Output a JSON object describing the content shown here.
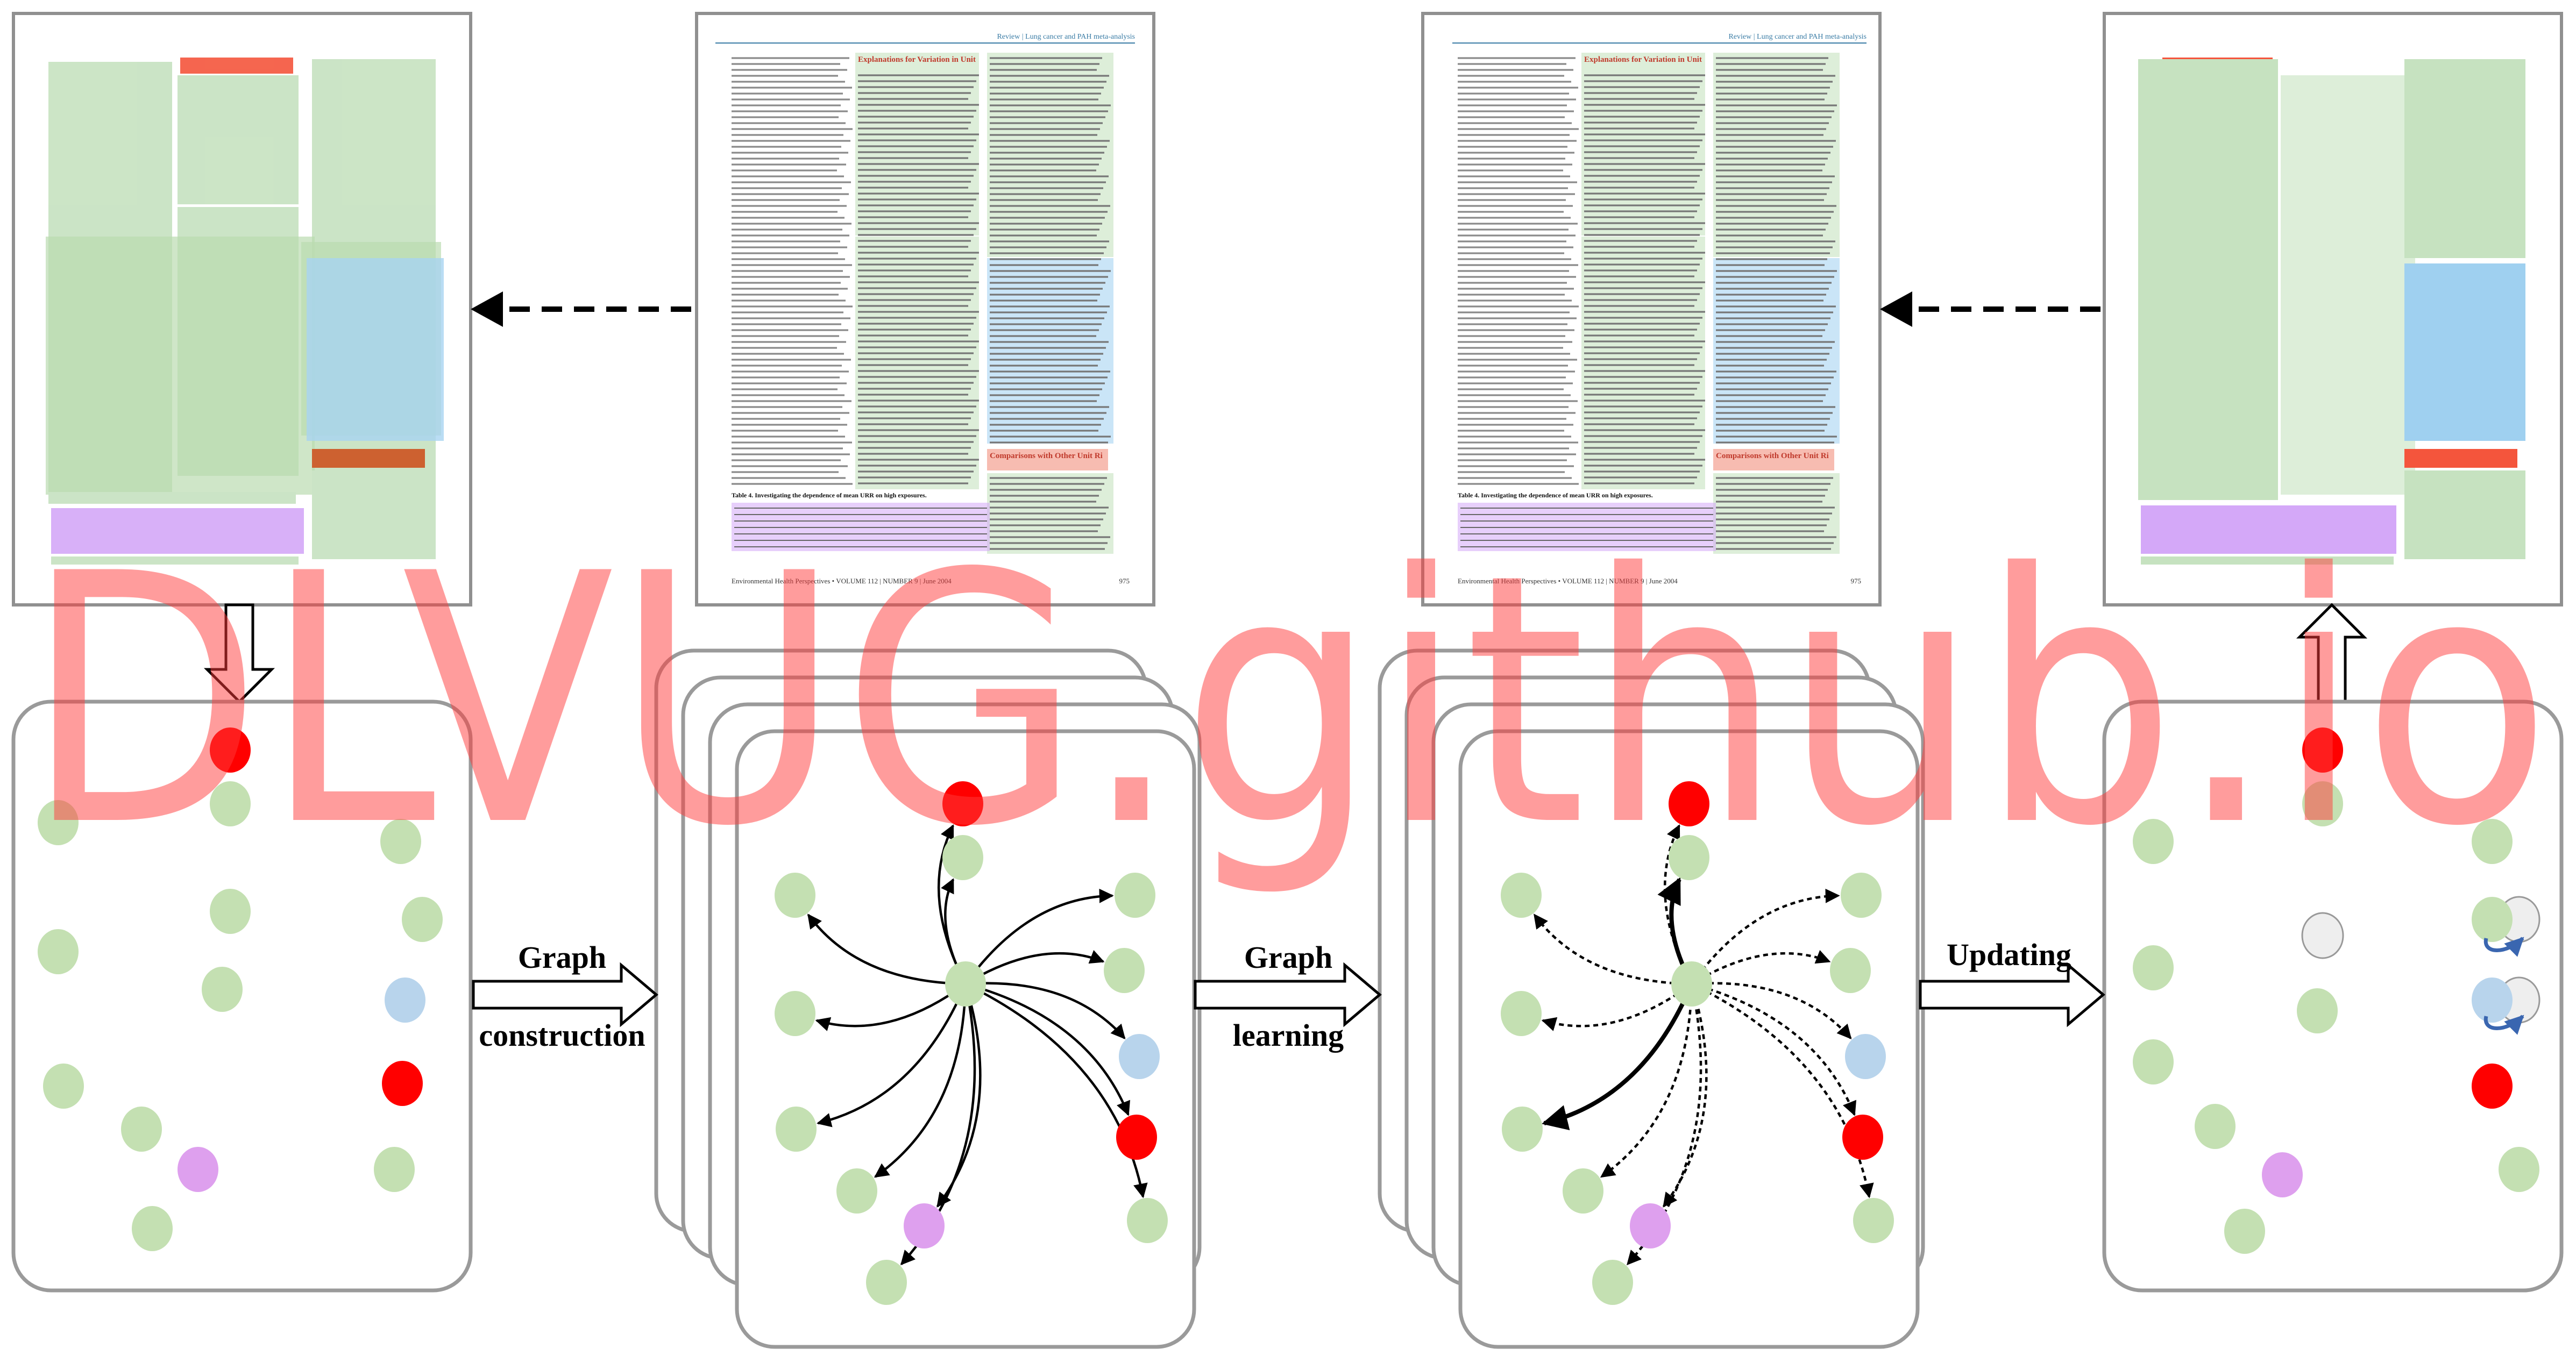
{
  "labels": {
    "graph_construction": [
      "Graph",
      "construction"
    ],
    "graph_learning": [
      "Graph",
      "learning"
    ],
    "updating": "Updating"
  },
  "watermark": "DLVUG.github.io",
  "document_page": {
    "header": "Review | Lung cancer and PAH meta-analysis",
    "footer_left": "Environmental Health Perspectives • VOLUME 112 | NUMBER 9 | June 2004",
    "footer_right": "975",
    "section_1": "Explanations for Variation in Unit Relative Risks",
    "section_2": "Comparisons with Other Unit Risk Assessments",
    "table_caption": "Table 4. Investigating the dependence of mean URR on high exposures."
  },
  "colors": {
    "text_block": "#c6e2c0",
    "title_block": "#f4553c",
    "figure_block": "#9fd0f0",
    "table_block": "#d4a8f8",
    "list_block": "#c8501a",
    "node_green": "#c4e0b2",
    "node_red": "#ff0000",
    "node_blue": "#b8d4ec",
    "node_purple": "#dea0ee",
    "node_gray": "#eeeeee",
    "panel_border": "#9a9a9a",
    "watermark": "#ff3a3a"
  }
}
